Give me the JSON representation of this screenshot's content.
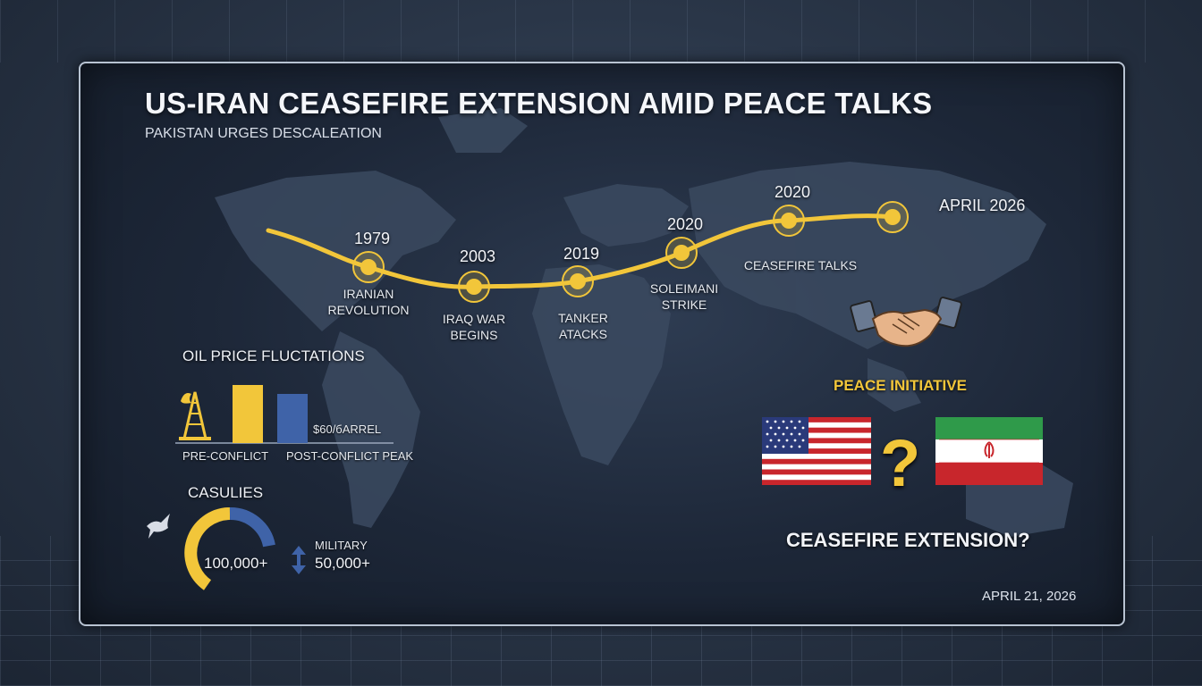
{
  "title": "US-IRAN CEASEFIRE EXTENSION AMID PEACE TALKS",
  "subtitle": "PAKISTAN URGES DESCALEATION",
  "timeline": [
    {
      "year": "1979",
      "label": "IRANIAN\nREVOLUTION"
    },
    {
      "year": "2003",
      "label": "IRAQ WAR\nBEGINS"
    },
    {
      "year": "2019",
      "label": "TANKER\nATACKS"
    },
    {
      "year": "2020",
      "label": "SOLEIMANI\nSTRIKE"
    },
    {
      "year": "2020",
      "label": "CEASEFIRE TALKS"
    },
    {
      "year": "APRIL 2026",
      "label": ""
    }
  ],
  "oil": {
    "heading": "OIL PRICE FLUCTATIONS",
    "price_label": "$60/бARREL",
    "pre_label": "PRE-CONFLICT",
    "post_label": "POST-CONFLICT PEAK",
    "colors": {
      "pre": "#f2c63a",
      "post": "#3f63a8"
    }
  },
  "casualties": {
    "heading": "CASULIES",
    "total": "100,000+",
    "military_label": "MILITARY",
    "military": "50,000+",
    "colors": {
      "civilian": "#f2c63a",
      "military": "#3f63a8"
    }
  },
  "peace": {
    "label": "PEACE INITIATIVE",
    "question_mark": "?",
    "question": "CEASEFIRE EXTENSION?"
  },
  "date": "APRIL 21, 2026",
  "colors": {
    "accent": "#f2c63a",
    "blue": "#3f63a8",
    "red": "#c8262c",
    "green": "#2f9a4a"
  },
  "icons": [
    "oil-derrick-icon",
    "dove-icon",
    "handshake-icon",
    "up-down-arrow-icon",
    "us-flag-icon",
    "iran-flag-icon"
  ]
}
